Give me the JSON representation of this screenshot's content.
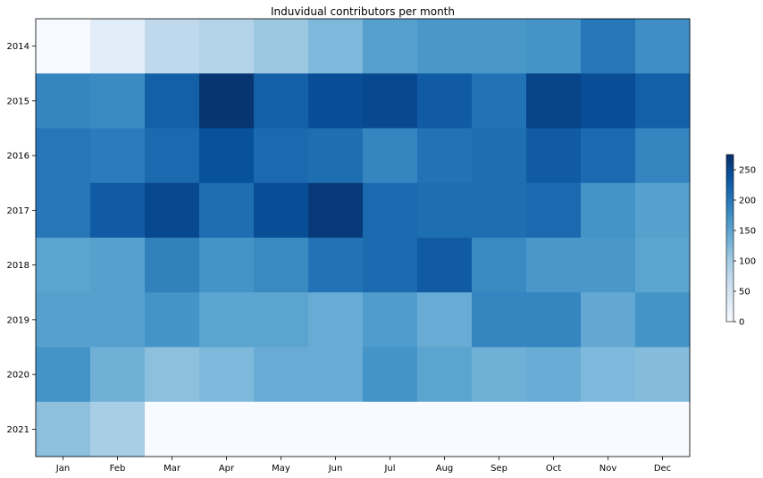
{
  "chart_data": {
    "type": "heatmap",
    "title": "Induvidual contributors per month",
    "xlabel": "",
    "ylabel": "",
    "x_categories": [
      "Jan",
      "Feb",
      "Mar",
      "Apr",
      "May",
      "Jun",
      "Jul",
      "Aug",
      "Sep",
      "Oct",
      "Nov",
      "Dec"
    ],
    "y_categories": [
      "2014",
      "2015",
      "2016",
      "2017",
      "2018",
      "2019",
      "2020",
      "2021"
    ],
    "values": [
      [
        2,
        30,
        75,
        85,
        105,
        125,
        155,
        165,
        165,
        170,
        200,
        175
      ],
      [
        185,
        180,
        225,
        270,
        225,
        245,
        250,
        230,
        205,
        255,
        245,
        225
      ],
      [
        200,
        195,
        215,
        240,
        215,
        210,
        185,
        205,
        210,
        230,
        215,
        185
      ],
      [
        200,
        230,
        250,
        210,
        245,
        265,
        215,
        210,
        210,
        215,
        170,
        155
      ],
      [
        150,
        155,
        190,
        170,
        180,
        205,
        215,
        230,
        180,
        165,
        165,
        150
      ],
      [
        155,
        155,
        170,
        150,
        150,
        140,
        160,
        140,
        185,
        185,
        145,
        170
      ],
      [
        170,
        135,
        115,
        125,
        140,
        140,
        170,
        150,
        135,
        140,
        125,
        120
      ],
      [
        115,
        95,
        0,
        0,
        0,
        0,
        0,
        0,
        0,
        0,
        0,
        0
      ]
    ],
    "colorbar": {
      "min": 0,
      "max": 275,
      "ticks": [
        0,
        50,
        100,
        150,
        200,
        250
      ],
      "colormap": "Blues"
    },
    "grid": false
  }
}
